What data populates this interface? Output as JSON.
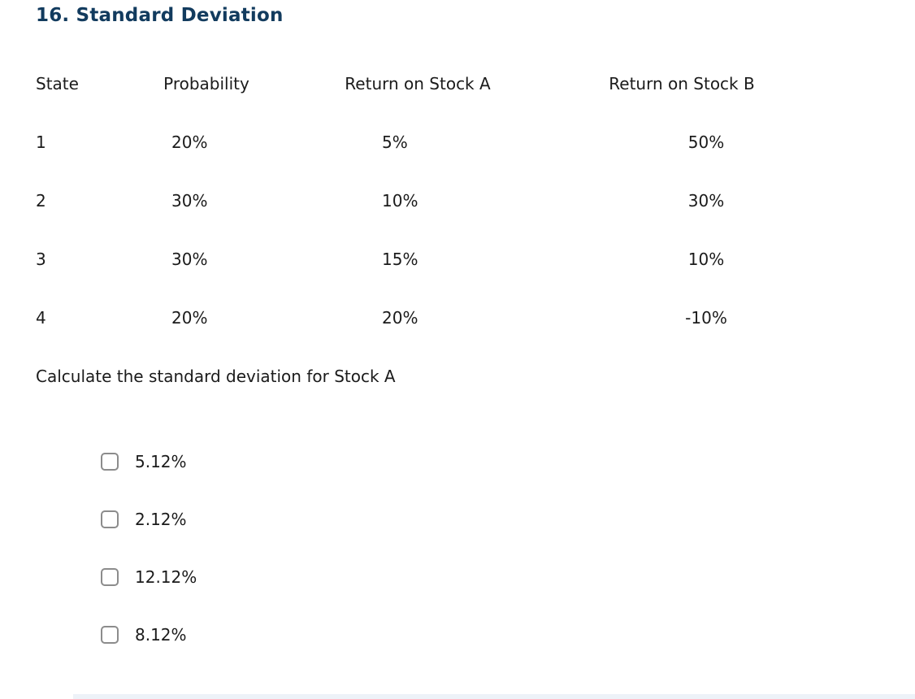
{
  "title": "16. Standard Deviation",
  "table": {
    "headers": [
      "State",
      "Probability",
      "Return on Stock A",
      "Return on Stock B"
    ],
    "rows": [
      [
        "1",
        "20%",
        "5%",
        "50%"
      ],
      [
        "2",
        "30%",
        "10%",
        "30%"
      ],
      [
        "3",
        "30%",
        "15%",
        "10%"
      ],
      [
        "4",
        "20%",
        "20%",
        "-10%"
      ]
    ]
  },
  "question": "Calculate the standard deviation for Stock A",
  "options": [
    {
      "label": "5.12%",
      "checked": false
    },
    {
      "label": "2.12%",
      "checked": false
    },
    {
      "label": "12.12%",
      "checked": false
    },
    {
      "label": "8.12%",
      "checked": false
    }
  ],
  "colors": {
    "title": "#123b5e",
    "text": "#1b1b1b",
    "checkbox_border": "#8c8c8c"
  }
}
